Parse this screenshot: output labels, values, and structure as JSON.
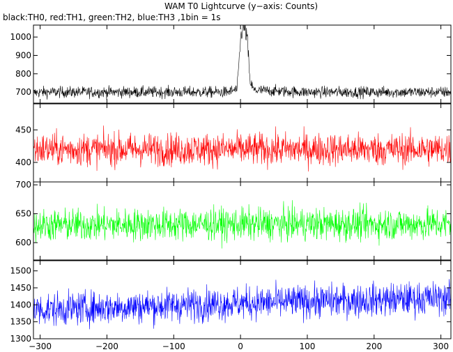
{
  "title": "WAM T0 Lightcurve (y−axis: Counts)",
  "subtitle": "black:TH0, red:TH1, green:TH2, blue:TH3 ,1bin = 1s",
  "chart_data": {
    "type": "line",
    "title": "WAM T0 Lightcurve (y−axis: Counts)",
    "subtitle": "black:TH0, red:TH1, green:TH2, blue:TH3 ,1bin = 1s",
    "xlabel": "",
    "ylabel": "Counts",
    "grid": false,
    "shared_x": {
      "xlim": [
        -310,
        315
      ],
      "ticks": [
        -300,
        -200,
        -100,
        0,
        100,
        200,
        300
      ],
      "tick_labels": [
        "−300",
        "−200",
        "−100",
        "0",
        "100",
        "200",
        "300"
      ]
    },
    "panels": [
      {
        "name": "TH0",
        "color": "#000000",
        "ylim": [
          640,
          1065
        ],
        "yticks": [
          700,
          800,
          900,
          1000
        ],
        "series_profile": [
          [
            -310,
            695
          ],
          [
            -300,
            700
          ],
          [
            -200,
            700
          ],
          [
            -100,
            700
          ],
          [
            -20,
            700
          ],
          [
            -5,
            715
          ],
          [
            0,
            985
          ],
          [
            3,
            1050
          ],
          [
            6,
            1045
          ],
          [
            10,
            1000
          ],
          [
            14,
            760
          ],
          [
            20,
            710
          ],
          [
            100,
            700
          ],
          [
            200,
            700
          ],
          [
            315,
            700
          ]
        ],
        "noise_amplitude": 22
      },
      {
        "name": "TH1",
        "color": "#ff0000",
        "ylim": [
          370,
          490
        ],
        "yticks": [
          400,
          450
        ],
        "series_profile": [
          [
            -310,
            420
          ],
          [
            0,
            420
          ],
          [
            315,
            420
          ]
        ],
        "noise_amplitude": 18
      },
      {
        "name": "TH2",
        "color": "#00ff00",
        "ylim": [
          570,
          705
        ],
        "yticks": [
          600,
          650,
          700
        ],
        "series_profile": [
          [
            -310,
            630
          ],
          [
            0,
            632
          ],
          [
            315,
            632
          ]
        ],
        "noise_amplitude": 20
      },
      {
        "name": "TH3",
        "color": "#0000ff",
        "ylim": [
          1300,
          1530
        ],
        "yticks": [
          1300,
          1350,
          1400,
          1450,
          1500
        ],
        "series_profile": [
          [
            -310,
            1385
          ],
          [
            0,
            1405
          ],
          [
            315,
            1420
          ]
        ],
        "noise_amplitude": 35
      }
    ]
  }
}
